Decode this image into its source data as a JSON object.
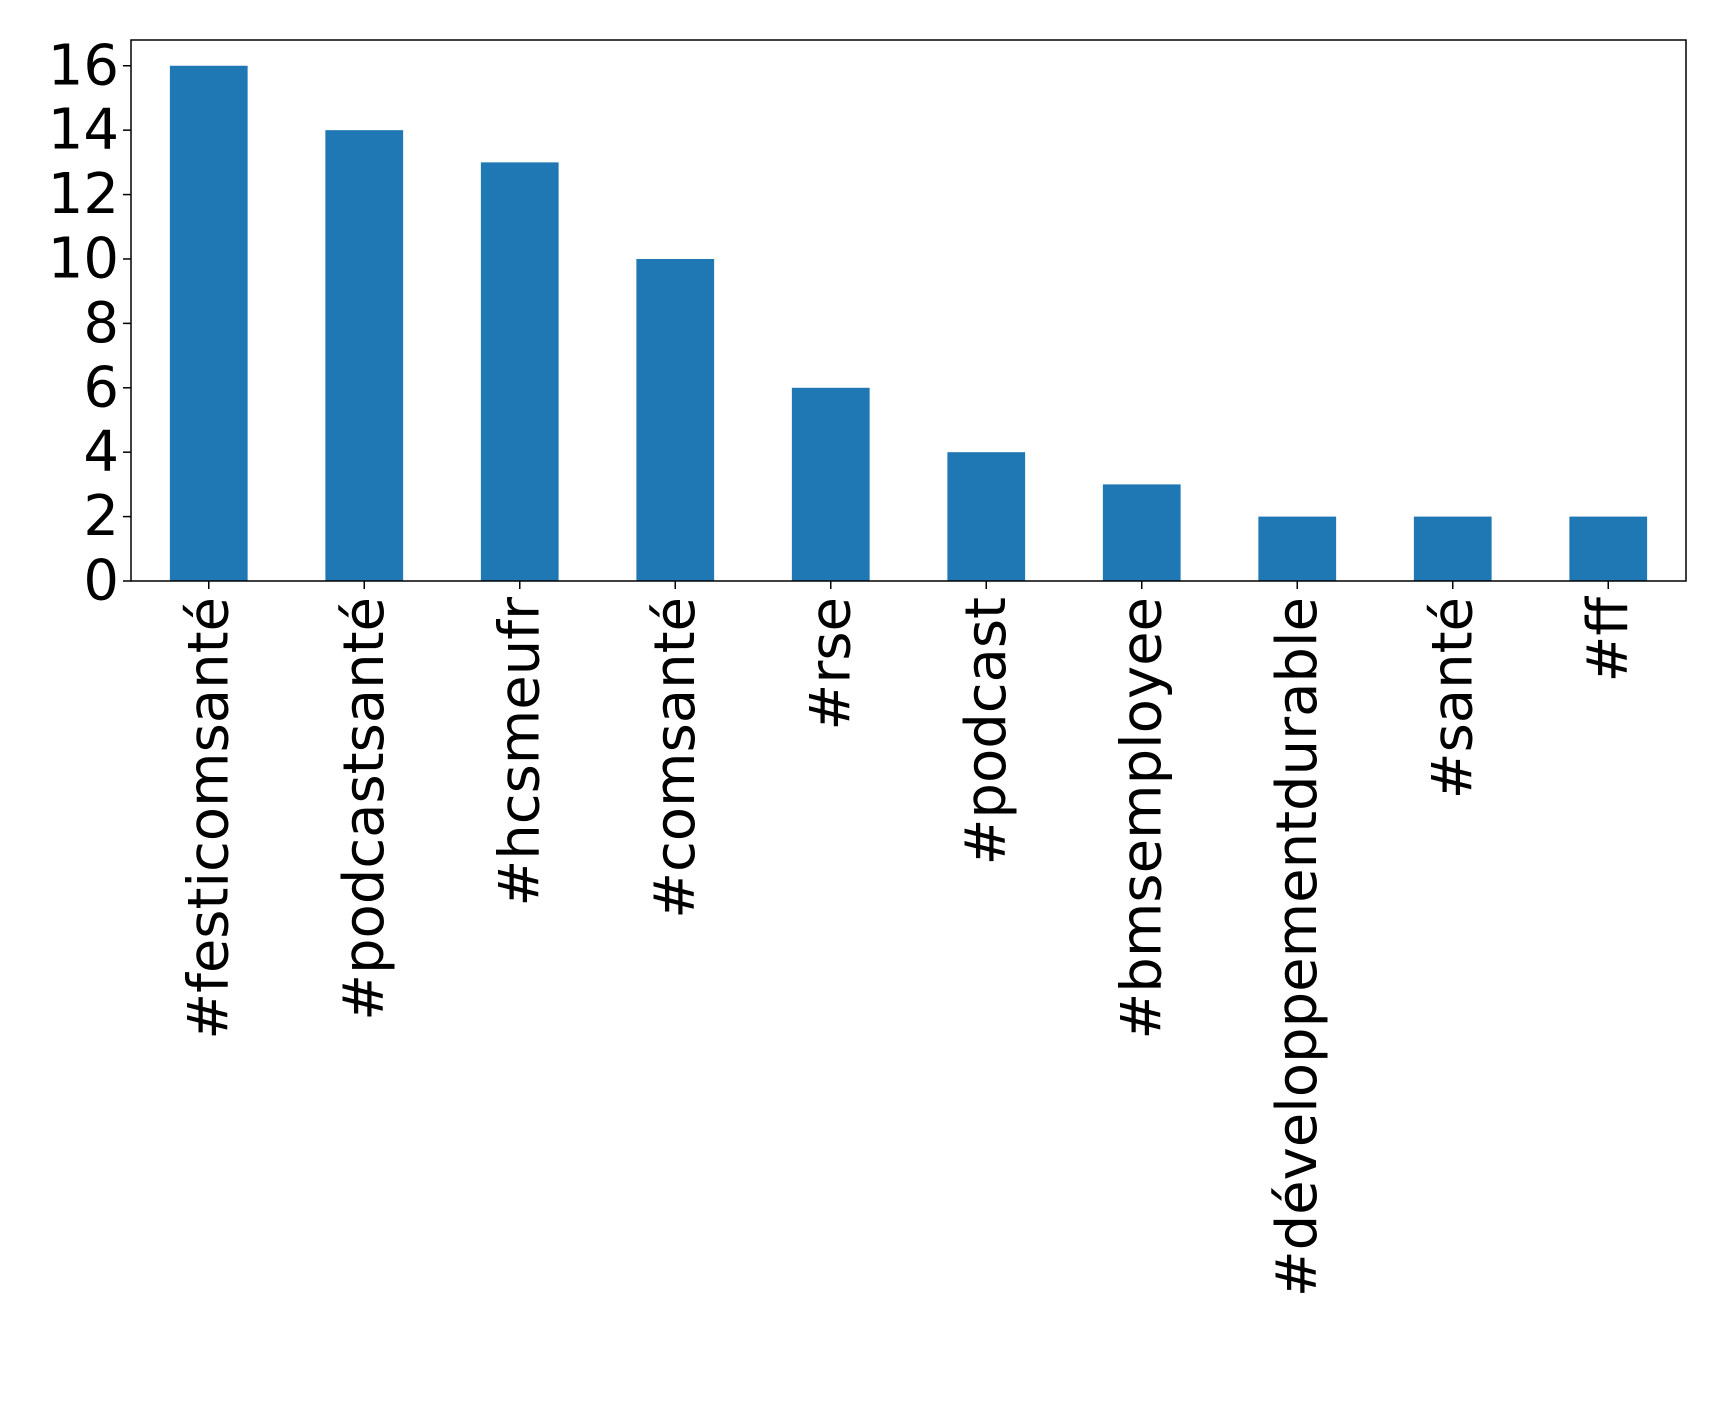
{
  "chart_data": {
    "type": "bar",
    "title": "",
    "xlabel": "",
    "ylabel": "",
    "categories": [
      "#festicomsanté",
      "#podcastsanté",
      "#hcsmeufr",
      "#comsanté",
      "#rse",
      "#podcast",
      "#bmsemployee",
      "#développementdurable",
      "#santé",
      "#ff"
    ],
    "values": [
      16,
      14,
      13,
      10,
      6,
      4,
      3,
      2,
      2,
      2
    ],
    "ylim": [
      0,
      16.8
    ],
    "yticks": [
      0,
      2,
      4,
      6,
      8,
      10,
      12,
      14,
      16
    ],
    "ytick_labels": [
      "0",
      "2",
      "4",
      "6",
      "8",
      "10",
      "12",
      "14",
      "16"
    ],
    "grid": false,
    "legend": "none",
    "bar_color": "#1f77b4"
  }
}
